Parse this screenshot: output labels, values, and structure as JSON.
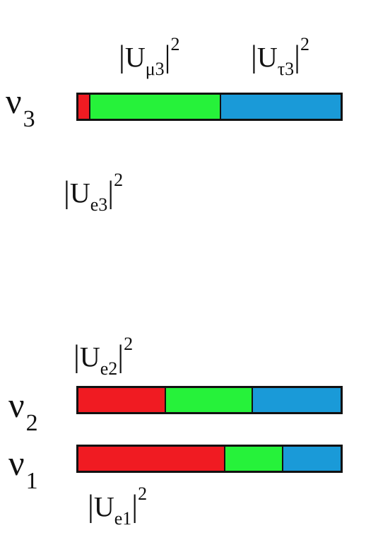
{
  "colors": {
    "e": "#f01b22",
    "mu": "#26f23a",
    "tau": "#1a9ad8"
  },
  "states": [
    {
      "id": "nu3",
      "symbol": "ν",
      "index": "3",
      "fractions": {
        "e": 0.04,
        "mu": 0.5,
        "tau": 0.46
      }
    },
    {
      "id": "nu2",
      "symbol": "ν",
      "index": "2",
      "fractions": {
        "e": 0.33,
        "mu": 0.33,
        "tau": 0.34
      }
    },
    {
      "id": "nu1",
      "symbol": "ν",
      "index": "1",
      "fractions": {
        "e": 0.555,
        "mu": 0.22,
        "tau": 0.225
      }
    }
  ],
  "labels": {
    "u_mu3": {
      "U": "U",
      "sub": "μ3",
      "sup": "2"
    },
    "u_tau3": {
      "U": "U",
      "sub": "τ3",
      "sup": "2"
    },
    "u_e3": {
      "U": "U",
      "sub": "e3",
      "sup": "2"
    },
    "u_e2": {
      "U": "U",
      "sub": "e2",
      "sup": "2"
    },
    "u_e1": {
      "U": "U",
      "sub": "e1",
      "sup": "2"
    }
  }
}
